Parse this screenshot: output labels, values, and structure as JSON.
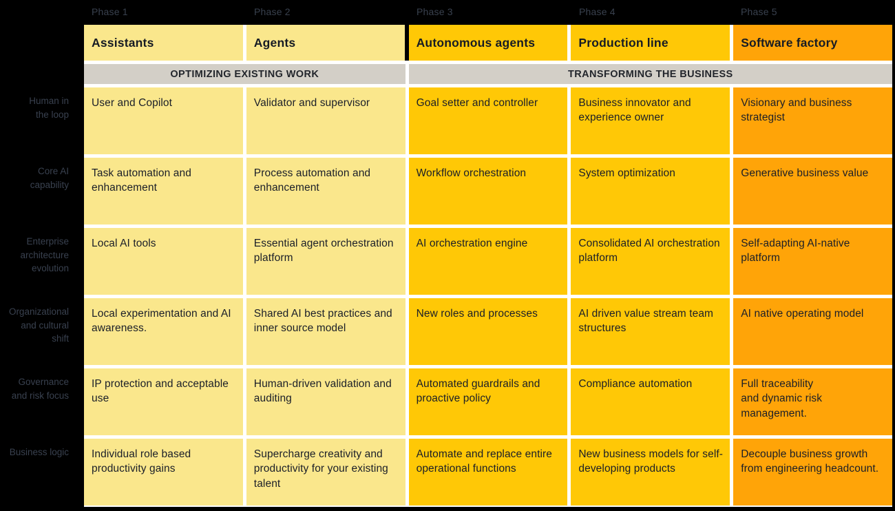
{
  "colors": {
    "background": "#000000",
    "light_yellow": "#FAE78C",
    "gold": "#FFC806",
    "orange": "#FFA408",
    "band_gray": "#D3CFC7",
    "cell_text": "#1A1E28",
    "phase_label_text": "#39414E",
    "row_label_text": "#39414F",
    "gap_white": "#FFFFFF"
  },
  "phases": [
    {
      "label": "Phase 1",
      "header": "Assistants"
    },
    {
      "label": "Phase 2",
      "header": "Agents"
    },
    {
      "label": "Phase 3",
      "header": "Autonomous agents"
    },
    {
      "label": "Phase 4",
      "header": "Production line"
    },
    {
      "label": "Phase 5",
      "header": "Software factory"
    }
  ],
  "bands": [
    {
      "label": "OPTIMIZING EXISTING WORK",
      "span": 2
    },
    {
      "label": "TRANSFORMING THE BUSINESS",
      "span": 3
    }
  ],
  "rows": [
    {
      "label": "Human in\nthe loop",
      "cells": [
        "User and Copilot",
        "Validator and supervisor",
        "Goal setter and controller",
        "Business innovator and experience owner",
        "Visionary and business strategist"
      ]
    },
    {
      "label": "Core AI\ncapability",
      "cells": [
        "Task automation and enhancement",
        "Process automation and enhancement",
        "Workflow orchestration",
        "System optimization",
        "Generative business value"
      ]
    },
    {
      "label": "Enterprise\narchitecture\nevolution",
      "cells": [
        "Local AI tools",
        "Essential agent orchestration platform",
        "AI orchestration engine",
        "Consolidated AI orchestration platform",
        "Self-adapting AI-native platform"
      ]
    },
    {
      "label": "Organizational\nand cultural\nshift",
      "cells": [
        "Local experimentation and AI awareness.",
        "Shared AI best practices and inner source model",
        "New roles and processes",
        "AI driven value stream team structures",
        "AI native operating model"
      ]
    },
    {
      "label": "Governance\nand risk focus",
      "cells": [
        "IP protection and acceptable use",
        "Human-driven validation and auditing",
        "Automated guardrails and proactive policy",
        "Compliance automation",
        "Full traceability\nand dynamic risk management."
      ]
    },
    {
      "label": "Business logic",
      "cells": [
        "Individual role based productivity gains",
        "Supercharge creativity and productivity for your existing talent",
        "Automate and replace entire operational functions",
        "New business models for self-developing products",
        "Decouple business growth from engineering headcount."
      ]
    }
  ]
}
